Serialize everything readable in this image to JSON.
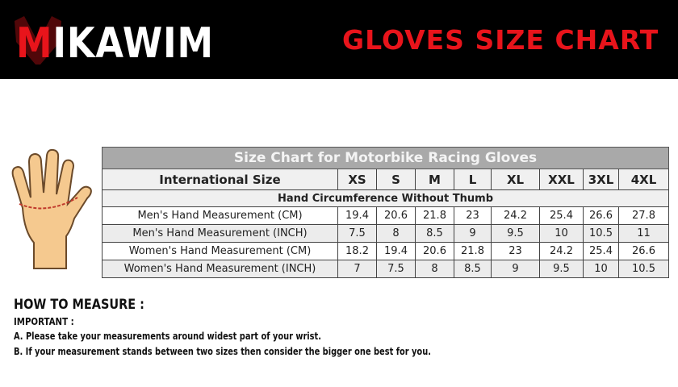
{
  "header": {
    "brand": "MIKAWIM",
    "brand_text": "IKAWIM",
    "title": "GLOVES SIZE CHART",
    "accent": "#e8141b"
  },
  "table": {
    "title": "Size Chart for Motorbike Racing Gloves",
    "header_label": "International Size",
    "sizes": [
      "XS",
      "S",
      "M",
      "L",
      "XL",
      "XXL",
      "3XL",
      "4XL"
    ],
    "subheader": "Hand Circumference Without Thumb",
    "rows": [
      {
        "label": "Men's Hand Measurement (CM)",
        "values": [
          "19.4",
          "20.6",
          "21.8",
          "23",
          "24.2",
          "25.4",
          "26.6",
          "27.8"
        ]
      },
      {
        "label": "Men's Hand Measurement (INCH)",
        "values": [
          "7.5",
          "8",
          "8.5",
          "9",
          "9.5",
          "10",
          "10.5",
          "11"
        ]
      },
      {
        "label": "Women's Hand Measurement (CM)",
        "values": [
          "18.2",
          "19.4",
          "20.6",
          "21.8",
          "23",
          "24.2",
          "25.4",
          "26.6"
        ]
      },
      {
        "label": "Women's Hand Measurement (INCH)",
        "values": [
          "7",
          "7.5",
          "8",
          "8.5",
          "9",
          "9.5",
          "10",
          "10.5"
        ]
      }
    ]
  },
  "instructions": {
    "heading": "HOW TO MEASURE :",
    "important": "IMPORTANT :",
    "lines": [
      "A. Please take your measurements around widest part of your wrist.",
      "B.  If your measurement stands between two sizes then consider the bigger one best for you."
    ]
  }
}
